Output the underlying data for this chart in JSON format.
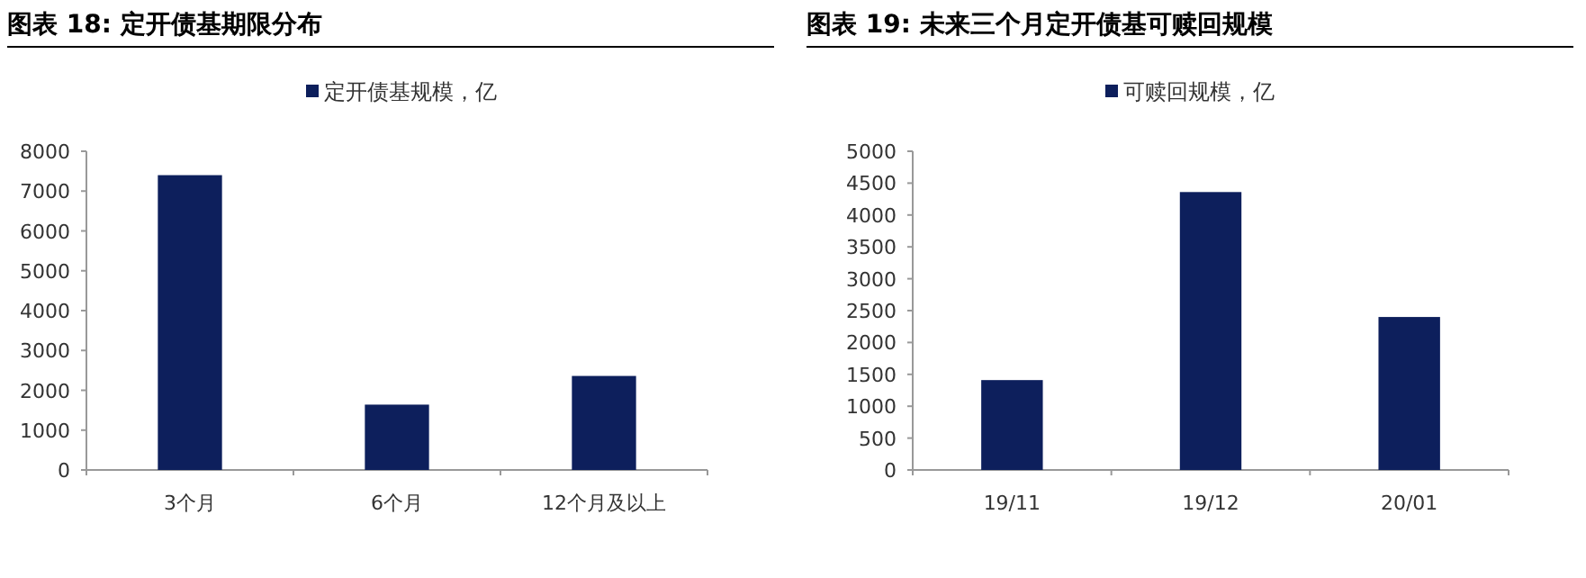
{
  "chart_data": [
    {
      "type": "bar",
      "title": "图表 18:  定开债基期限分布",
      "categories": [
        "3个月",
        "6个月",
        "12个月及以上"
      ],
      "series": [
        {
          "name": "定开债基规模，亿",
          "color": "#0d1f5c",
          "values": [
            7400,
            1640,
            2360
          ]
        }
      ],
      "ylim": [
        0,
        8000
      ],
      "yticks": [
        0,
        1000,
        2000,
        3000,
        4000,
        5000,
        6000,
        7000,
        8000
      ],
      "legend": "top"
    },
    {
      "type": "bar",
      "title": "图表 19:  未来三个月定开债基可赎回规模",
      "categories": [
        "19/11",
        "19/12",
        "20/01"
      ],
      "series": [
        {
          "name": "可赎回规模，亿",
          "color": "#0d1f5c",
          "values": [
            1410,
            4360,
            2400
          ]
        }
      ],
      "ylim": [
        0,
        5000
      ],
      "yticks": [
        0,
        500,
        1000,
        1500,
        2000,
        2500,
        3000,
        3500,
        4000,
        4500,
        5000
      ],
      "legend": "top"
    }
  ]
}
